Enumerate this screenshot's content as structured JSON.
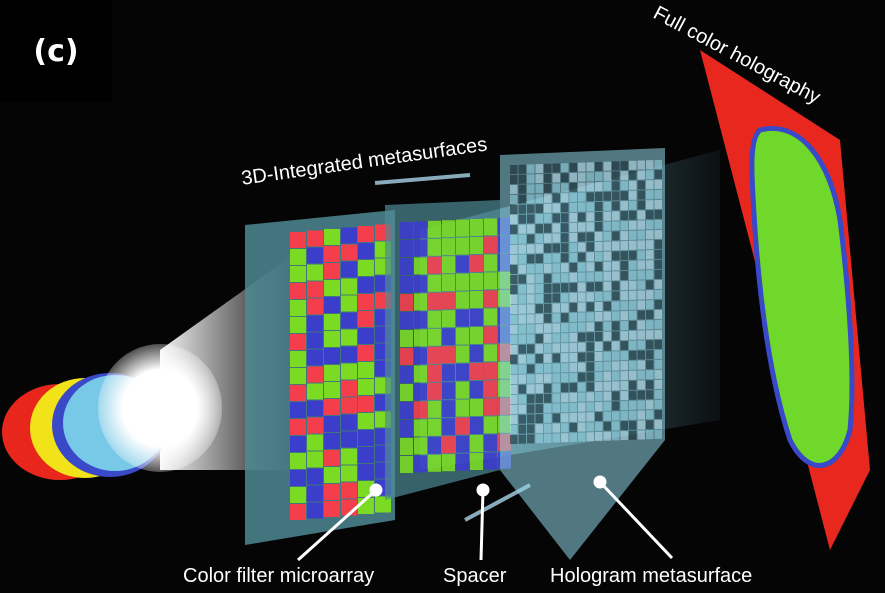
{
  "panel_label": "(c)",
  "labels": {
    "integrated": "3D-Integrated metasurfaces",
    "holography": "Full color holography",
    "color_filter": "Color filter microarray",
    "spacer": "Spacer",
    "hologram": "Hologram metasurface"
  },
  "colors": {
    "background": "#050505",
    "filter_red": "#ff3b4a",
    "filter_green": "#7ee01e",
    "filter_blue": "#3b3bd0",
    "slab": "#4f8a95",
    "screen_red": "#e8281e",
    "beam": "#bff4ff"
  }
}
